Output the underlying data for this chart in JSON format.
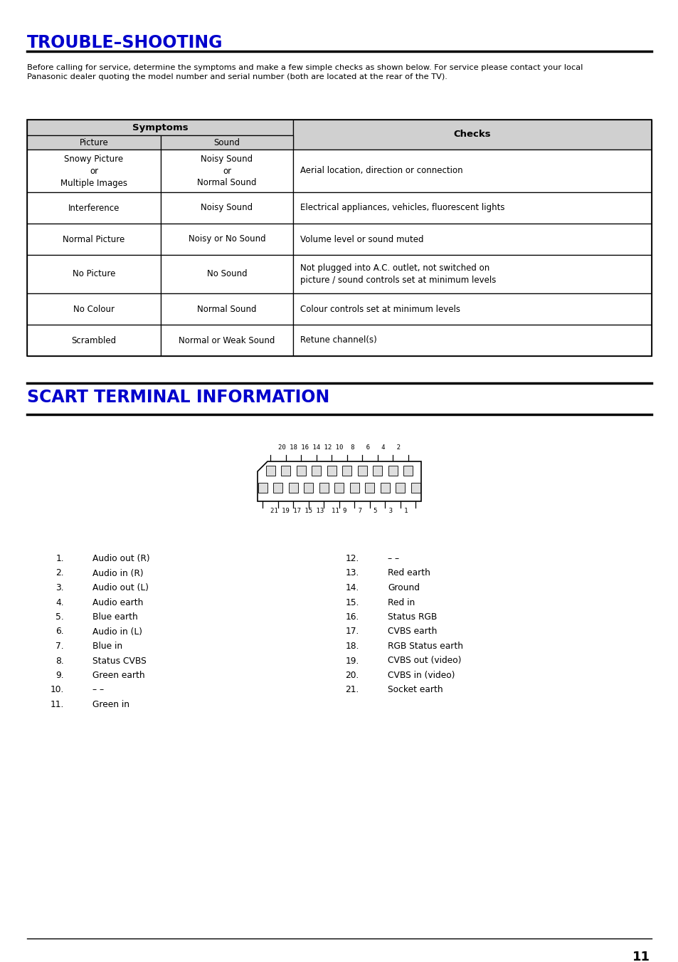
{
  "title1": "TROUBLE–SHOOTING",
  "title2": "SCART TERMINAL INFORMATION",
  "title_color": "#0000CC",
  "intro_text": "Before calling for service, determine the symptoms and make a few simple checks as shown below. For service please contact your local\nPanasonic dealer quoting the model number and serial number (both are located at the rear of the TV).",
  "table_header_symptoms": "Symptoms",
  "table_header_checks": "Checks",
  "table_col1": "Picture",
  "table_col2": "Sound",
  "table_rows": [
    [
      "Snowy Picture\nor\nMultiple Images",
      "Noisy Sound\nor\nNormal Sound",
      "Aerial location, direction or connection"
    ],
    [
      "Interference",
      "Noisy Sound",
      "Electrical appliances, vehicles, fluorescent lights"
    ],
    [
      "Normal Picture",
      "Noisy or No Sound",
      "Volume level or sound muted"
    ],
    [
      "No Picture",
      "No Sound",
      "Not plugged into A.C. outlet, not switched on\npicture / sound controls set at minimum levels"
    ],
    [
      "No Colour",
      "Normal Sound",
      "Colour controls set at minimum levels"
    ],
    [
      "Scrambled",
      "Normal or Weak Sound",
      "Retune channel(s)"
    ]
  ],
  "scart_top_labels": "20 18 16 14 12 10  8   6   4   2",
  "scart_bottom_labels": "21 19 17 15 13  11 9   7   5   3   1",
  "left_list_nums": [
    "1.",
    "2.",
    "3.",
    "4.",
    "5.",
    "6.",
    "7.",
    "8.",
    "9.",
    "10.",
    "11."
  ],
  "left_list_items": [
    "Audio out (R)",
    "Audio in (R)",
    "Audio out (L)",
    "Audio earth",
    "Blue earth",
    "Audio in (L)",
    "Blue in",
    "Status CVBS",
    "Green earth",
    "– –",
    "Green in"
  ],
  "right_list_nums": [
    "12.",
    "13.",
    "14.",
    "15.",
    "16.",
    "17.",
    "18.",
    "19.",
    "20.",
    "21."
  ],
  "right_list_items": [
    "– –",
    "Red earth",
    "Ground",
    "Red in",
    "Status RGB",
    "CVBS earth",
    "RGB Status earth",
    "CVBS out (video)",
    "CVBS in (video)",
    "Socket earth"
  ],
  "page_number": "11",
  "bg_color": "#FFFFFF",
  "subheader_bg": "#D0D0D0",
  "text_color": "#000000"
}
